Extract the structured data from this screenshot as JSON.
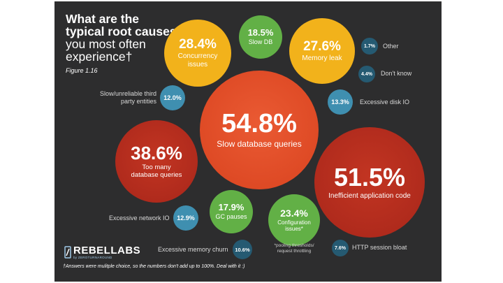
{
  "title": {
    "line1": "What are the",
    "line2": "typical root causes",
    "line3": "you most often",
    "line4": "experience†"
  },
  "figure_label": "Figure 1.16",
  "footnote": "†Answers were mulitple choice, so the numbers don't add up to 100%. Deal with it :)",
  "pooling_note": "*pooling thresholds/ request throttling",
  "logo": {
    "name": "REBELLABS",
    "sub": "by ZEROTURNAROUND"
  },
  "colors": {
    "background": "#2d2d2e",
    "orange_red": "#e4502b",
    "dark_red": "#b52a1d",
    "yellow": "#f2b21b",
    "green": "#62b046",
    "blue": "#3f8fb0",
    "dark_blue": "#255a72"
  },
  "chart_data": {
    "type": "bubble",
    "items": [
      {
        "label": "Slow database queries",
        "value": 54.8,
        "display": "54.8%"
      },
      {
        "label": "Inefficient application code",
        "value": 51.5,
        "display": "51.5%"
      },
      {
        "label": "Too many database queries",
        "value": 38.6,
        "display": "38.6%"
      },
      {
        "label": "Concurrency issues",
        "value": 28.4,
        "display": "28.4%"
      },
      {
        "label": "Memory leak",
        "value": 27.6,
        "display": "27.6%"
      },
      {
        "label": "Configuration issues*",
        "value": 23.4,
        "display": "23.4%"
      },
      {
        "label": "Slow DB",
        "value": 18.5,
        "display": "18.5%"
      },
      {
        "label": "GC pauses",
        "value": 17.9,
        "display": "17.9%"
      },
      {
        "label": "Excessive disk IO",
        "value": 13.3,
        "display": "13.3%"
      },
      {
        "label": "Excessive network IO",
        "value": 12.9,
        "display": "12.9%"
      },
      {
        "label": "Slow/unreliable third party entities",
        "value": 12.0,
        "display": "12.0%"
      },
      {
        "label": "Excessive memory churn",
        "value": 10.6,
        "display": "10.6%"
      },
      {
        "label": "HTTP session bloat",
        "value": 7.6,
        "display": "7.6%"
      },
      {
        "label": "Don't know",
        "value": 4.4,
        "display": "4.4%"
      },
      {
        "label": "Other",
        "value": 1.7,
        "display": "1.7%"
      }
    ]
  }
}
